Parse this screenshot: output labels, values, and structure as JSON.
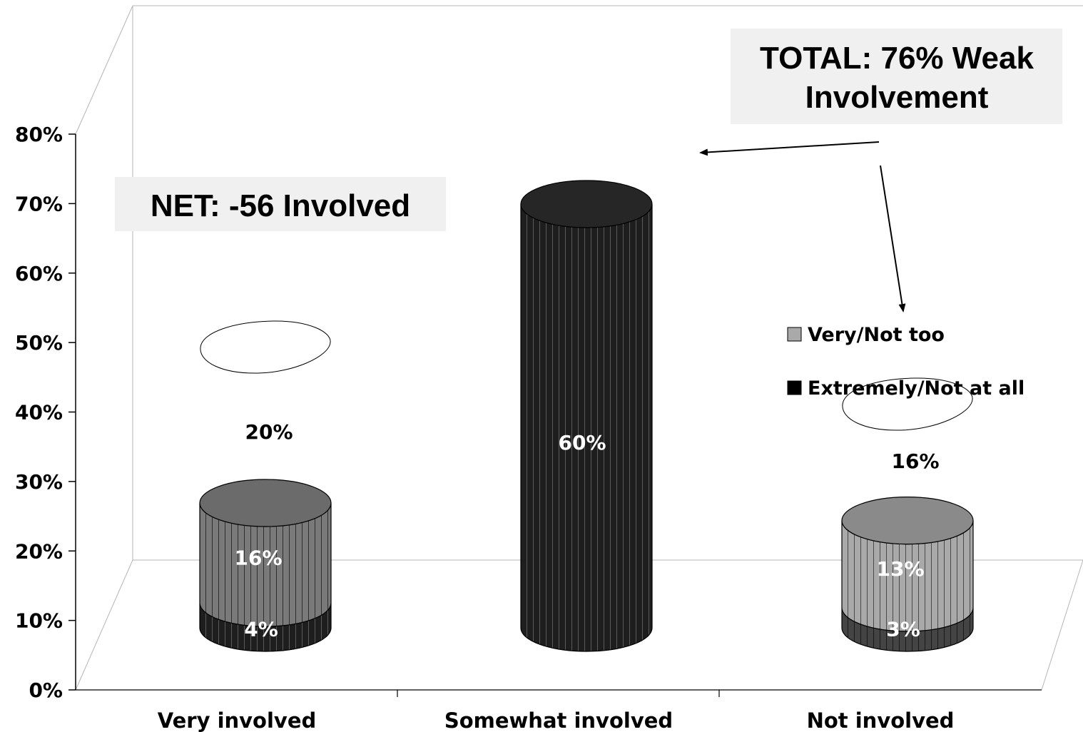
{
  "chart_data": {
    "type": "bar",
    "stacked": true,
    "style": "3d-cylinder",
    "categories": [
      "Very involved",
      "Somewhat involved",
      "Not involved"
    ],
    "series": [
      {
        "name": "Extremely/Not at all",
        "values": [
          4,
          60,
          3
        ],
        "color": "#1e1e1e"
      },
      {
        "name": "Very/Not too",
        "values": [
          16,
          null,
          13
        ],
        "color": "#7a7a7a"
      }
    ],
    "totals": [
      {
        "category": "Very involved",
        "label": "20%"
      },
      {
        "category": "Not involved",
        "label": "16%"
      }
    ],
    "value_labels": {
      "extreme": [
        "4%",
        "60%",
        "3%"
      ],
      "very": [
        "16%",
        "",
        "13%"
      ]
    },
    "y_ticks": [
      "0%",
      "10%",
      "20%",
      "30%",
      "40%",
      "50%",
      "60%",
      "70%",
      "80%"
    ],
    "ylim": [
      0,
      80
    ],
    "legend": {
      "position": "right",
      "entries": [
        "Very/Not too",
        "Extremely/Not at all"
      ]
    },
    "annotations": {
      "total_line1": "TOTAL: 76% Weak",
      "total_line2": "Involvement",
      "net": "NET: -56 Involved"
    }
  }
}
